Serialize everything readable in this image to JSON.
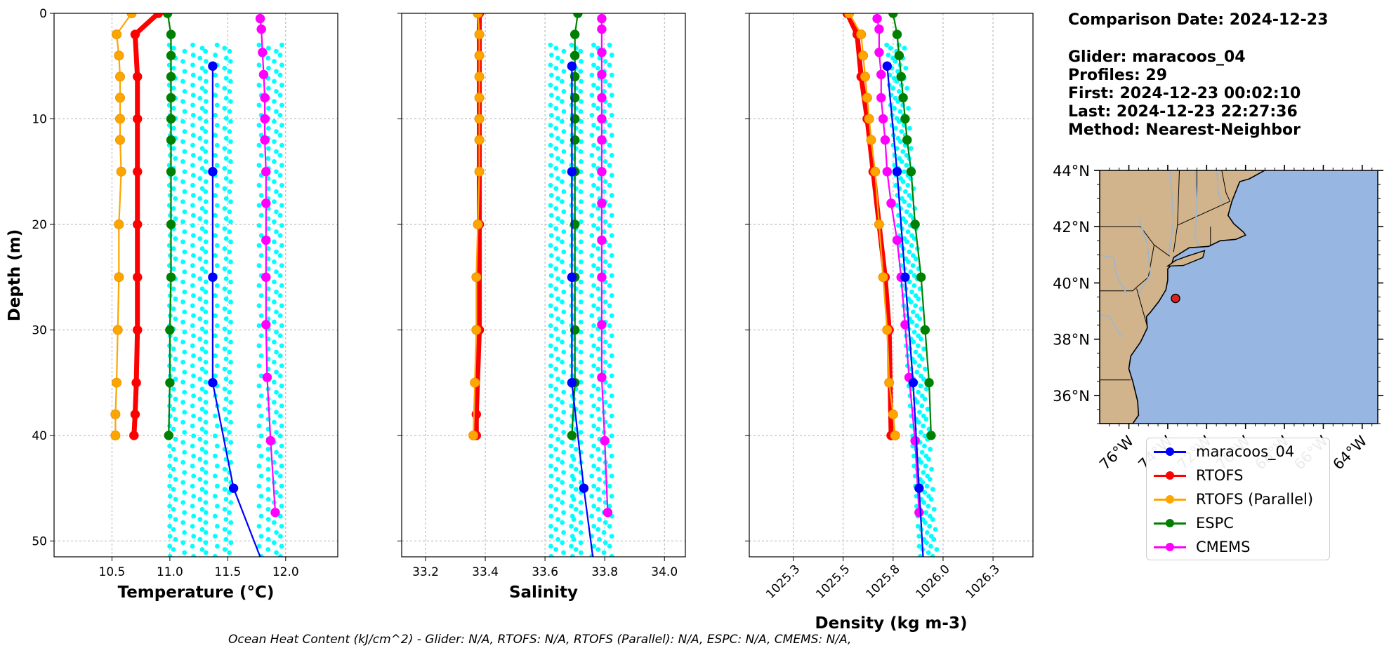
{
  "info": {
    "date_line": "Comparison Date: 2024-12-23",
    "glider_line": "Glider: maracoos_04",
    "profiles_line": "Profiles: 29",
    "first_line": "First: 2024-12-23 00:02:10",
    "last_line": "Last: 2024-12-23 22:27:36",
    "method_line": "Method: Nearest-Neighbor"
  },
  "footer": "Ocean Heat Content (kJ/cm^2) - Glider: N/A,  RTOFS: N/A,  RTOFS (Parallel): N/A,  ESPC: N/A,  CMEMS: N/A,",
  "colors": {
    "glider": "#0000ff",
    "scatter": "#00ffff",
    "rtofs": "#ff0000",
    "rtofs_parallel": "#ffa500",
    "espc": "#008000",
    "cmems": "#ff00ff",
    "land": "#d2b48c",
    "ocean": "#97b6e1"
  },
  "legend": [
    {
      "name": "maracoos_04",
      "color": "#0000ff"
    },
    {
      "name": "RTOFS",
      "color": "#ff0000"
    },
    {
      "name": "RTOFS (Parallel)",
      "color": "#ffa500"
    },
    {
      "name": "ESPC",
      "color": "#008000"
    },
    {
      "name": "CMEMS",
      "color": "#ff00ff"
    }
  ],
  "chart_data": [
    {
      "type": "line",
      "xlabel": "Temperature (°C)",
      "ylabel": "Depth (m)",
      "xlim": [
        10.0,
        12.45
      ],
      "ylim": [
        51.5,
        0
      ],
      "xticks": [
        10.5,
        11.0,
        11.5,
        12.0
      ],
      "yticks": [
        0,
        10,
        20,
        30,
        40,
        50
      ],
      "grid": true,
      "scatter": {
        "name": "glider profiles",
        "columns": [
          11.0,
          11.04,
          11.12,
          11.2,
          11.27,
          11.31,
          11.4,
          11.48,
          11.52,
          11.78,
          11.85,
          11.91,
          11.96
        ],
        "depth_top": 3,
        "depth_bottom": 51.5
      },
      "series": [
        {
          "name": "maracoos_04",
          "x": [
            11.37,
            11.37,
            11.37,
            11.37,
            11.55,
            11.78
          ],
          "y": [
            5,
            15,
            25,
            35,
            45,
            51.5
          ]
        },
        {
          "name": "RTOFS",
          "x": [
            10.9,
            10.7,
            10.72,
            10.72,
            10.72,
            10.72,
            10.72,
            10.72,
            10.71,
            10.7,
            10.69
          ],
          "y": [
            0,
            2,
            6,
            10,
            15,
            20,
            25,
            30,
            35,
            38,
            40
          ]
        },
        {
          "name": "RTOFS (Parallel)",
          "x": [
            10.67,
            10.54,
            10.56,
            10.57,
            10.57,
            10.57,
            10.57,
            10.58,
            10.56,
            10.56,
            10.55,
            10.54,
            10.53,
            10.53
          ],
          "y": [
            0,
            2,
            4,
            6,
            8,
            10,
            12,
            15,
            20,
            25,
            30,
            35,
            38,
            40
          ]
        },
        {
          "name": "ESPC",
          "x": [
            10.98,
            11.01,
            11.01,
            11.01,
            11.01,
            11.01,
            11.01,
            11.01,
            11.01,
            11.01,
            11.0,
            11.0,
            10.99
          ],
          "y": [
            0,
            2,
            4,
            6,
            8,
            10,
            12,
            15,
            20,
            25,
            30,
            35,
            40
          ]
        },
        {
          "name": "CMEMS",
          "x": [
            11.78,
            11.79,
            11.8,
            11.81,
            11.82,
            11.82,
            11.82,
            11.83,
            11.83,
            11.83,
            11.83,
            11.83,
            11.84,
            11.87,
            11.91
          ],
          "y": [
            0.5,
            1.5,
            3.7,
            5.8,
            8,
            10,
            12,
            15,
            18,
            21.5,
            25,
            29.5,
            34.5,
            40.5,
            47.3
          ]
        }
      ]
    },
    {
      "type": "line",
      "xlabel": "Salinity",
      "ylabel": "",
      "xlim": [
        33.12,
        34.07
      ],
      "ylim": [
        51.5,
        0
      ],
      "xticks": [
        33.2,
        33.4,
        33.6,
        33.8,
        34.0
      ],
      "yticks": [
        0,
        10,
        20,
        30,
        40,
        50
      ],
      "grid": true,
      "scatter": {
        "name": "glider profiles",
        "columns": [
          33.62,
          33.64,
          33.66,
          33.69,
          33.7,
          33.72,
          33.76,
          33.78,
          33.8,
          33.82
        ],
        "depth_top": 3,
        "depth_bottom": 51.5
      },
      "series": [
        {
          "name": "maracoos_04",
          "x": [
            33.69,
            33.69,
            33.69,
            33.69,
            33.73,
            33.76
          ],
          "y": [
            5,
            15,
            25,
            35,
            45,
            51.5
          ]
        },
        {
          "name": "RTOFS",
          "x": [
            33.38,
            33.38,
            33.38,
            33.38,
            33.38,
            33.38,
            33.37,
            33.37
          ],
          "y": [
            0,
            2,
            6,
            10,
            20,
            30,
            38,
            40
          ]
        },
        {
          "name": "RTOFS (Parallel)",
          "x": [
            33.375,
            33.38,
            33.38,
            33.38,
            33.38,
            33.38,
            33.38,
            33.38,
            33.375,
            33.37,
            33.37,
            33.365,
            33.36
          ],
          "y": [
            0,
            2,
            4,
            6,
            8,
            10,
            12,
            15,
            20,
            25,
            30,
            35,
            40
          ]
        },
        {
          "name": "ESPC",
          "x": [
            33.71,
            33.7,
            33.7,
            33.7,
            33.7,
            33.7,
            33.7,
            33.7,
            33.7,
            33.7,
            33.7,
            33.7,
            33.69
          ],
          "y": [
            0,
            2,
            4,
            6,
            8,
            10,
            12,
            15,
            20,
            25,
            30,
            35,
            40
          ]
        },
        {
          "name": "CMEMS",
          "x": [
            33.79,
            33.79,
            33.79,
            33.79,
            33.79,
            33.79,
            33.79,
            33.79,
            33.79,
            33.79,
            33.79,
            33.79,
            33.79,
            33.8,
            33.81
          ],
          "y": [
            0.5,
            1.5,
            3.7,
            5.8,
            8,
            10,
            12,
            15,
            18,
            21.5,
            25,
            29.5,
            34.5,
            40.5,
            47.3
          ]
        }
      ]
    },
    {
      "type": "line",
      "xlabel": "Density (kg m-3)",
      "ylabel": "",
      "xlim": [
        1025.03,
        1026.45
      ],
      "ylim": [
        51.5,
        0
      ],
      "xticks": [
        1025.25,
        1025.5,
        1025.75,
        1026.0,
        1026.25
      ],
      "yticks": [
        0,
        10,
        20,
        30,
        40,
        50
      ],
      "grid": true,
      "scatter": {
        "name": "glider profiles",
        "columns": [
          1025.71,
          1025.73,
          1025.75,
          1025.77,
          1025.79
        ],
        "depth_top": 3,
        "depth_bottom": 51.5,
        "slope_per_m": 0.0034
      },
      "series": [
        {
          "name": "maracoos_04",
          "x": [
            1025.72,
            1025.77,
            1025.81,
            1025.85,
            1025.88,
            1025.9
          ],
          "y": [
            5,
            15,
            25,
            35,
            45,
            51.5
          ]
        },
        {
          "name": "RTOFS",
          "x": [
            1025.52,
            1025.57,
            1025.59,
            1025.62,
            1025.65,
            1025.68,
            1025.71,
            1025.73,
            1025.74
          ],
          "y": [
            0,
            2,
            6,
            10,
            15,
            20,
            25,
            30,
            40
          ]
        },
        {
          "name": "RTOFS (Parallel)",
          "x": [
            1025.53,
            1025.59,
            1025.6,
            1025.61,
            1025.62,
            1025.63,
            1025.64,
            1025.66,
            1025.68,
            1025.7,
            1025.72,
            1025.73,
            1025.75,
            1025.76
          ],
          "y": [
            0,
            2,
            4,
            6,
            8,
            10,
            12,
            15,
            20,
            25,
            30,
            35,
            38,
            40
          ]
        },
        {
          "name": "ESPC",
          "x": [
            1025.75,
            1025.77,
            1025.78,
            1025.79,
            1025.8,
            1025.81,
            1025.82,
            1025.84,
            1025.86,
            1025.89,
            1025.91,
            1025.93,
            1025.94
          ],
          "y": [
            0,
            2,
            4,
            6,
            8,
            10,
            12,
            15,
            20,
            25,
            30,
            35,
            40
          ]
        },
        {
          "name": "CMEMS",
          "x": [
            1025.67,
            1025.68,
            1025.68,
            1025.69,
            1025.69,
            1025.7,
            1025.71,
            1025.72,
            1025.74,
            1025.77,
            1025.79,
            1025.81,
            1025.83,
            1025.86,
            1025.88
          ],
          "y": [
            0.5,
            1.5,
            3.7,
            5.8,
            8,
            10,
            12,
            15,
            18,
            21.5,
            25,
            29.5,
            34.5,
            40.5,
            47.3
          ]
        }
      ]
    },
    {
      "type": "map",
      "lon_range": [
        -77.5,
        -63.2
      ],
      "lat_range": [
        35.0,
        44.0
      ],
      "xticks": [
        "76°W",
        "74°W",
        "72°W",
        "70°W",
        "68°W",
        "66°W",
        "64°W"
      ],
      "yticks": [
        "44°N",
        "42°N",
        "40°N",
        "38°N",
        "36°N"
      ],
      "glider_position": {
        "lon": -73.6,
        "lat": 39.45
      }
    }
  ]
}
